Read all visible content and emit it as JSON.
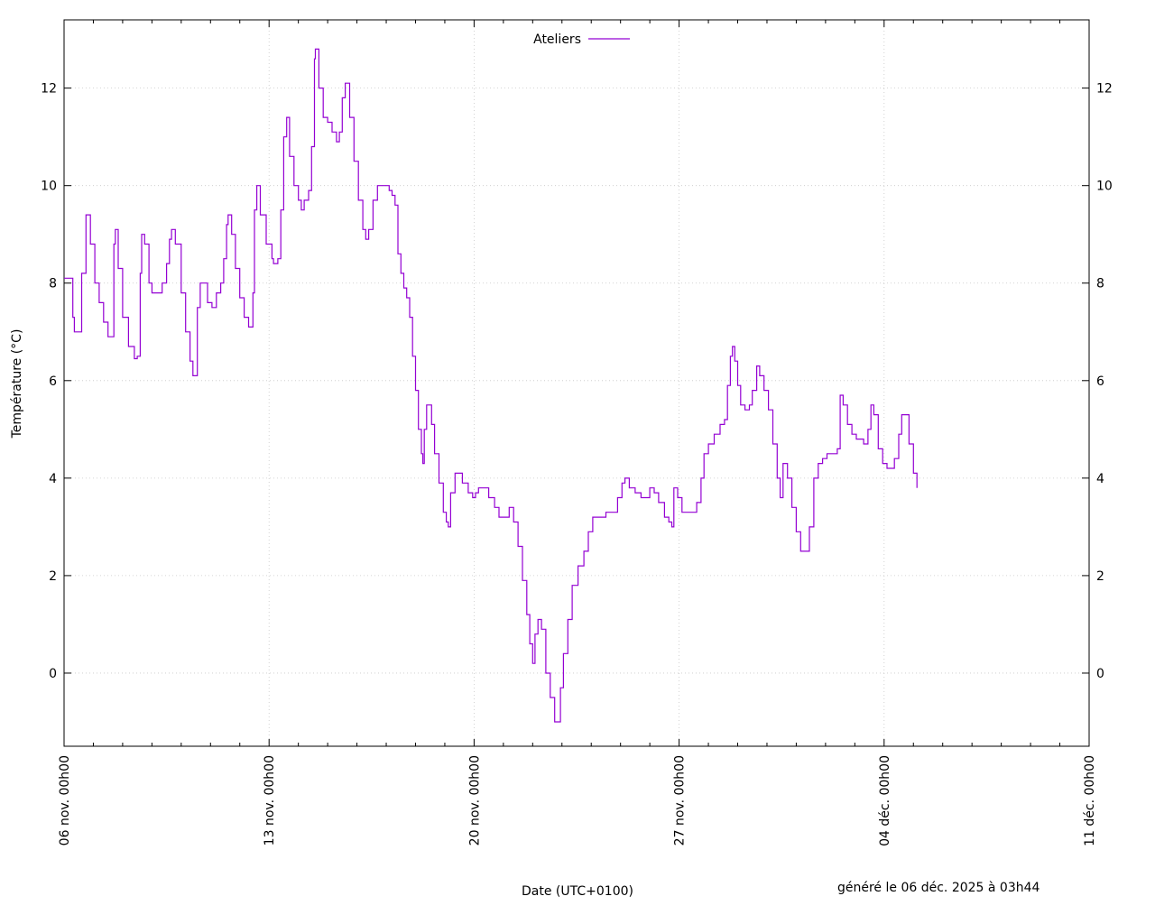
{
  "chart_data": {
    "type": "line",
    "title": "",
    "xlabel": "Date (UTC+0100)",
    "ylabel": "Température (°C)",
    "xlim": [
      "06 nov. 00h00",
      "11 déc. 00h00"
    ],
    "ylim": [
      -1.5,
      13.4
    ],
    "x_tick_labels": [
      "06 nov. 00h00",
      "13 nov. 00h00",
      "20 nov. 00h00",
      "27 nov. 00h00",
      "04 déc. 00h00",
      "11 déc. 00h00"
    ],
    "y_tick_labels": [
      "0",
      "2",
      "4",
      "6",
      "8",
      "10",
      "12"
    ],
    "grid": true,
    "legend_position": "top-center",
    "series": [
      {
        "name": "Ateliers",
        "color": "#9400d3",
        "x_unit": "days since 06 nov. 00h00",
        "points": [
          [
            0.0,
            8.1
          ],
          [
            0.3,
            7.3
          ],
          [
            0.35,
            7.0
          ],
          [
            0.5,
            7.0
          ],
          [
            0.6,
            8.2
          ],
          [
            0.75,
            9.4
          ],
          [
            0.9,
            8.8
          ],
          [
            1.05,
            8.0
          ],
          [
            1.2,
            7.6
          ],
          [
            1.35,
            7.2
          ],
          [
            1.5,
            6.9
          ],
          [
            1.58,
            6.9
          ],
          [
            1.7,
            8.8
          ],
          [
            1.75,
            9.1
          ],
          [
            1.85,
            8.3
          ],
          [
            2.0,
            7.3
          ],
          [
            2.2,
            6.7
          ],
          [
            2.4,
            6.45
          ],
          [
            2.5,
            6.5
          ],
          [
            2.6,
            8.2
          ],
          [
            2.65,
            9.0
          ],
          [
            2.75,
            8.8
          ],
          [
            2.9,
            8.0
          ],
          [
            3.0,
            7.8
          ],
          [
            3.15,
            7.8
          ],
          [
            3.35,
            8.0
          ],
          [
            3.5,
            8.4
          ],
          [
            3.6,
            8.9
          ],
          [
            3.67,
            9.1
          ],
          [
            3.8,
            8.8
          ],
          [
            4.0,
            7.8
          ],
          [
            4.15,
            7.0
          ],
          [
            4.3,
            6.4
          ],
          [
            4.4,
            6.1
          ],
          [
            4.55,
            7.5
          ],
          [
            4.65,
            8.0
          ],
          [
            4.75,
            8.0
          ],
          [
            4.9,
            7.6
          ],
          [
            5.05,
            7.5
          ],
          [
            5.2,
            7.8
          ],
          [
            5.35,
            8.0
          ],
          [
            5.45,
            8.5
          ],
          [
            5.55,
            9.2
          ],
          [
            5.6,
            9.4
          ],
          [
            5.72,
            9.0
          ],
          [
            5.85,
            8.3
          ],
          [
            6.0,
            7.7
          ],
          [
            6.15,
            7.3
          ],
          [
            6.3,
            7.1
          ],
          [
            6.45,
            7.8
          ],
          [
            6.5,
            9.5
          ],
          [
            6.58,
            10.0
          ],
          [
            6.7,
            9.4
          ],
          [
            6.9,
            8.8
          ],
          [
            7.1,
            8.5
          ],
          [
            7.15,
            8.4
          ],
          [
            7.3,
            8.5
          ],
          [
            7.4,
            9.5
          ],
          [
            7.5,
            11.0
          ],
          [
            7.6,
            11.4
          ],
          [
            7.7,
            10.6
          ],
          [
            7.85,
            10.0
          ],
          [
            8.0,
            9.7
          ],
          [
            8.1,
            9.5
          ],
          [
            8.2,
            9.7
          ],
          [
            8.35,
            9.9
          ],
          [
            8.45,
            10.8
          ],
          [
            8.55,
            12.6
          ],
          [
            8.58,
            12.8
          ],
          [
            8.7,
            12.0
          ],
          [
            8.85,
            11.4
          ],
          [
            9.0,
            11.3
          ],
          [
            9.15,
            11.1
          ],
          [
            9.3,
            10.9
          ],
          [
            9.4,
            11.1
          ],
          [
            9.5,
            11.8
          ],
          [
            9.6,
            12.1
          ],
          [
            9.75,
            11.4
          ],
          [
            9.9,
            10.5
          ],
          [
            10.05,
            9.7
          ],
          [
            10.2,
            9.1
          ],
          [
            10.3,
            8.9
          ],
          [
            10.4,
            9.1
          ],
          [
            10.55,
            9.7
          ],
          [
            10.7,
            10.0
          ],
          [
            10.9,
            10.0
          ],
          [
            11.1,
            9.9
          ],
          [
            11.2,
            9.8
          ],
          [
            11.3,
            9.6
          ],
          [
            11.4,
            8.6
          ],
          [
            11.5,
            8.2
          ],
          [
            11.6,
            7.9
          ],
          [
            11.7,
            7.7
          ],
          [
            11.8,
            7.3
          ],
          [
            11.9,
            6.5
          ],
          [
            12.0,
            5.8
          ],
          [
            12.1,
            5.0
          ],
          [
            12.2,
            4.5
          ],
          [
            12.25,
            4.3
          ],
          [
            12.3,
            5.0
          ],
          [
            12.38,
            5.5
          ],
          [
            12.45,
            5.5
          ],
          [
            12.55,
            5.1
          ],
          [
            12.65,
            4.5
          ],
          [
            12.8,
            3.9
          ],
          [
            12.95,
            3.3
          ],
          [
            13.05,
            3.1
          ],
          [
            13.12,
            3.0
          ],
          [
            13.2,
            3.7
          ],
          [
            13.35,
            4.1
          ],
          [
            13.45,
            4.1
          ],
          [
            13.6,
            3.9
          ],
          [
            13.8,
            3.7
          ],
          [
            13.95,
            3.6
          ],
          [
            14.05,
            3.7
          ],
          [
            14.15,
            3.8
          ],
          [
            14.35,
            3.8
          ],
          [
            14.5,
            3.6
          ],
          [
            14.7,
            3.4
          ],
          [
            14.85,
            3.2
          ],
          [
            15.05,
            3.2
          ],
          [
            15.2,
            3.4
          ],
          [
            15.35,
            3.1
          ],
          [
            15.5,
            2.6
          ],
          [
            15.65,
            1.9
          ],
          [
            15.8,
            1.2
          ],
          [
            15.9,
            0.6
          ],
          [
            16.0,
            0.2
          ],
          [
            16.08,
            0.8
          ],
          [
            16.18,
            1.1
          ],
          [
            16.3,
            0.9
          ],
          [
            16.45,
            0.0
          ],
          [
            16.6,
            -0.5
          ],
          [
            16.75,
            -1.0
          ],
          [
            16.85,
            -1.0
          ],
          [
            16.95,
            -0.3
          ],
          [
            17.05,
            0.4
          ],
          [
            17.2,
            1.1
          ],
          [
            17.35,
            1.8
          ],
          [
            17.55,
            2.2
          ],
          [
            17.75,
            2.5
          ],
          [
            17.9,
            2.9
          ],
          [
            18.05,
            3.2
          ],
          [
            18.25,
            3.2
          ],
          [
            18.5,
            3.3
          ],
          [
            18.75,
            3.3
          ],
          [
            18.9,
            3.6
          ],
          [
            19.05,
            3.9
          ],
          [
            19.15,
            4.0
          ],
          [
            19.3,
            3.8
          ],
          [
            19.5,
            3.7
          ],
          [
            19.7,
            3.6
          ],
          [
            19.85,
            3.6
          ],
          [
            20.0,
            3.8
          ],
          [
            20.15,
            3.7
          ],
          [
            20.3,
            3.5
          ],
          [
            20.5,
            3.2
          ],
          [
            20.65,
            3.1
          ],
          [
            20.75,
            3.0
          ],
          [
            20.82,
            3.8
          ],
          [
            20.95,
            3.6
          ],
          [
            21.1,
            3.3
          ],
          [
            21.3,
            3.3
          ],
          [
            21.45,
            3.3
          ],
          [
            21.6,
            3.5
          ],
          [
            21.75,
            4.0
          ],
          [
            21.85,
            4.5
          ],
          [
            22.0,
            4.7
          ],
          [
            22.2,
            4.9
          ],
          [
            22.4,
            5.1
          ],
          [
            22.55,
            5.2
          ],
          [
            22.65,
            5.9
          ],
          [
            22.75,
            6.5
          ],
          [
            22.82,
            6.7
          ],
          [
            22.9,
            6.4
          ],
          [
            23.0,
            5.9
          ],
          [
            23.1,
            5.5
          ],
          [
            23.25,
            5.4
          ],
          [
            23.4,
            5.5
          ],
          [
            23.5,
            5.8
          ],
          [
            23.65,
            6.3
          ],
          [
            23.75,
            6.1
          ],
          [
            23.9,
            5.8
          ],
          [
            24.05,
            5.4
          ],
          [
            24.2,
            4.7
          ],
          [
            24.35,
            4.0
          ],
          [
            24.45,
            3.6
          ],
          [
            24.55,
            4.3
          ],
          [
            24.7,
            4.0
          ],
          [
            24.85,
            3.4
          ],
          [
            25.0,
            2.9
          ],
          [
            25.15,
            2.5
          ],
          [
            25.3,
            2.5
          ],
          [
            25.45,
            3.0
          ],
          [
            25.6,
            4.0
          ],
          [
            25.75,
            4.3
          ],
          [
            25.9,
            4.4
          ],
          [
            26.05,
            4.5
          ],
          [
            26.25,
            4.5
          ],
          [
            26.4,
            4.6
          ],
          [
            26.5,
            5.7
          ],
          [
            26.6,
            5.5
          ],
          [
            26.75,
            5.1
          ],
          [
            26.9,
            4.9
          ],
          [
            27.05,
            4.8
          ],
          [
            27.2,
            4.8
          ],
          [
            27.3,
            4.7
          ],
          [
            27.45,
            5.0
          ],
          [
            27.55,
            5.5
          ],
          [
            27.65,
            5.3
          ],
          [
            27.8,
            4.6
          ],
          [
            27.95,
            4.3
          ],
          [
            28.1,
            4.2
          ],
          [
            28.25,
            4.2
          ],
          [
            28.35,
            4.4
          ],
          [
            28.5,
            4.9
          ],
          [
            28.6,
            5.3
          ],
          [
            28.7,
            5.3
          ],
          [
            28.85,
            4.7
          ],
          [
            29.0,
            4.1
          ],
          [
            29.12,
            3.8
          ]
        ]
      }
    ],
    "footer_note": "généré le 06 déc. 2025 à 03h44"
  }
}
